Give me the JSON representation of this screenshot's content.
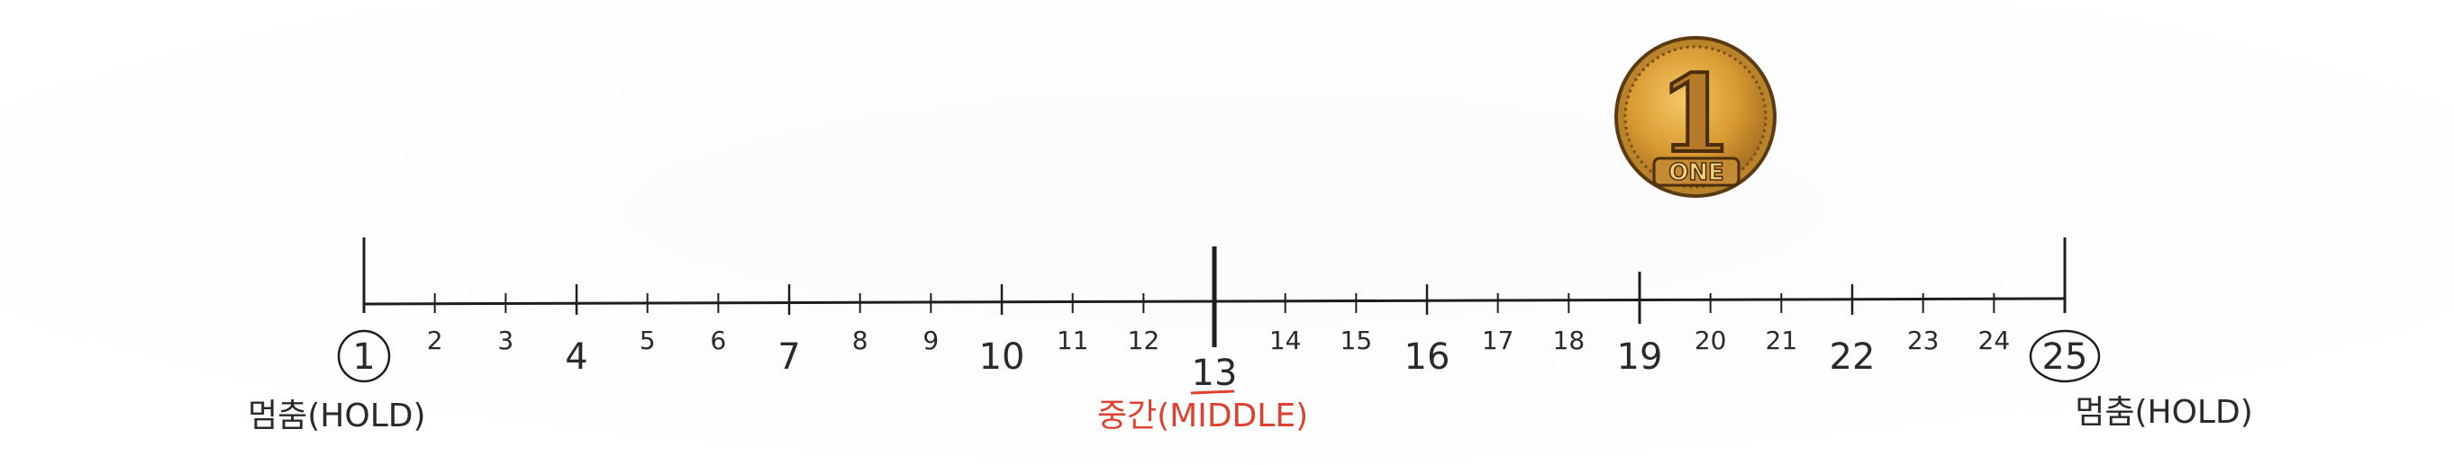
{
  "number_line": {
    "start": 1,
    "end": 25,
    "middle": 13,
    "ticks": [
      {
        "value": 1,
        "label": "1",
        "circled": true
      },
      {
        "value": 2,
        "label": "2"
      },
      {
        "value": 3,
        "label": "3"
      },
      {
        "value": 4,
        "label": "4"
      },
      {
        "value": 5,
        "label": "5"
      },
      {
        "value": 6,
        "label": "6"
      },
      {
        "value": 7,
        "label": "7"
      },
      {
        "value": 8,
        "label": "8"
      },
      {
        "value": 9,
        "label": "9"
      },
      {
        "value": 10,
        "label": "10"
      },
      {
        "value": 11,
        "label": "11"
      },
      {
        "value": 12,
        "label": "12"
      },
      {
        "value": 13,
        "label": "13",
        "underlined": true
      },
      {
        "value": 14,
        "label": "14"
      },
      {
        "value": 15,
        "label": "15"
      },
      {
        "value": 16,
        "label": "16"
      },
      {
        "value": 17,
        "label": "17"
      },
      {
        "value": 18,
        "label": "18"
      },
      {
        "value": 19,
        "label": "19"
      },
      {
        "value": 20,
        "label": "20"
      },
      {
        "value": 21,
        "label": "21"
      },
      {
        "value": 22,
        "label": "22"
      },
      {
        "value": 23,
        "label": "23"
      },
      {
        "value": 24,
        "label": "24"
      },
      {
        "value": 25,
        "label": "25",
        "circled": true
      }
    ]
  },
  "labels": {
    "left_hold": "멈춤(HOLD)",
    "middle": "중간(MIDDLE)",
    "right_hold": "멈춤(HOLD)"
  },
  "coin": {
    "numeral": "1",
    "word": "ONE",
    "position_value": 18
  },
  "colors": {
    "line": "#1e1e1e",
    "middle_label": "#e0412f",
    "coin_gold": "#d99a32",
    "coin_dark": "#8a5a1c"
  }
}
